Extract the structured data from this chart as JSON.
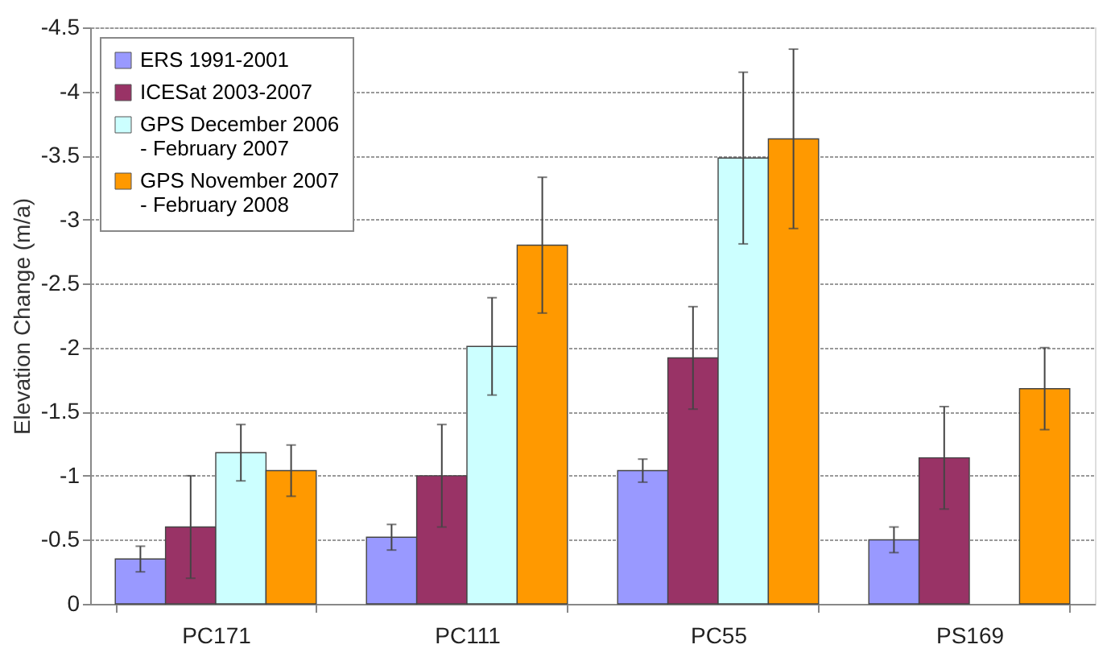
{
  "chart_data": {
    "type": "bar",
    "ylabel": "Elevation Change (m/a)",
    "categories": [
      "PC171",
      "PC111",
      "PC55",
      "PS169"
    ],
    "series": [
      {
        "name": "ERS 1991-2001",
        "color": "#9999ff",
        "values": [
          -0.35,
          -0.52,
          -1.04,
          -0.5
        ],
        "errors": [
          0.1,
          0.1,
          0.09,
          0.1
        ]
      },
      {
        "name": "ICESat 2003-2007",
        "color": "#993366",
        "values": [
          -0.6,
          -1.0,
          -1.92,
          -1.14
        ],
        "errors": [
          0.4,
          0.4,
          0.4,
          0.4
        ]
      },
      {
        "name": "GPS December 2006 - February 2007",
        "color": "#ccffff",
        "values": [
          -1.18,
          -2.01,
          -3.48,
          null
        ],
        "errors": [
          0.22,
          0.38,
          0.67,
          null
        ]
      },
      {
        "name": "GPS November 2007 - February 2008",
        "color": "#ff9900",
        "values": [
          -1.04,
          -2.8,
          -3.63,
          -1.68
        ],
        "errors": [
          0.2,
          0.53,
          0.7,
          0.32
        ]
      }
    ],
    "ylim": [
      0,
      -4.5
    ],
    "yticks": [
      0,
      -0.5,
      -1,
      -1.5,
      -2,
      -2.5,
      -3,
      -3.5,
      -4,
      -4.5
    ],
    "grid": "y",
    "legend": "top left"
  }
}
